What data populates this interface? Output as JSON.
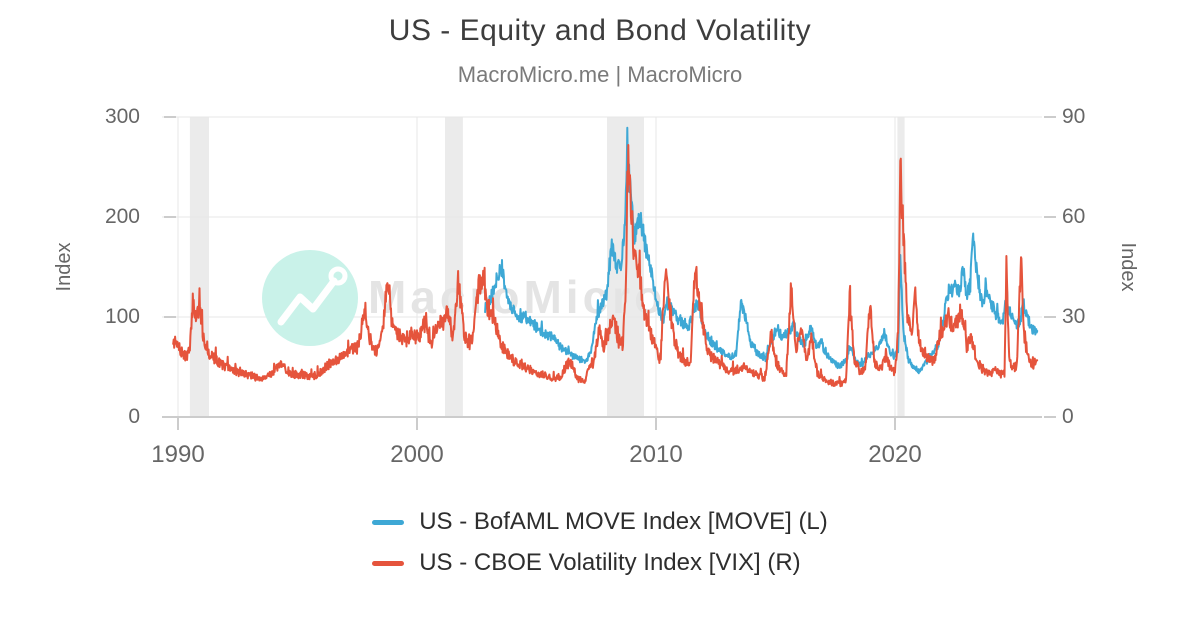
{
  "watermark": {
    "text": "MacroMicro"
  },
  "colors": {
    "move": "#3EA8D5",
    "vix": "#E5543C",
    "band": "#EBEBEB",
    "grid": "#E7E7E7",
    "axis_line": "#CCCCCC",
    "tick_text": "#666666",
    "watermark_circle": "#C9F2E9",
    "watermark_text": "#E4E4E4"
  },
  "chart_data": {
    "type": "line",
    "title": "US - Equity and Bond Volatility",
    "subtitle": "MacroMicro.me | MacroMicro",
    "xlabel": "",
    "ylabel_left": "Index",
    "ylabel_right": "Index",
    "xlim": [
      1989.33,
      2026.15
    ],
    "ylim_left": [
      0,
      300
    ],
    "ylim_right": [
      0,
      90
    ],
    "x_ticks": [
      1990,
      2000,
      2010,
      2020
    ],
    "left_ticks": [
      0,
      100,
      200,
      300
    ],
    "right_ticks": [
      0,
      30,
      60,
      90
    ],
    "grid": true,
    "legend_position": "bottom",
    "recession_bands": [
      [
        1990.5,
        1991.3
      ],
      [
        2001.17,
        2001.92
      ],
      [
        2007.95,
        2009.5
      ],
      [
        2020.1,
        2020.4
      ]
    ],
    "series": [
      {
        "name": "US - BofAML MOVE Index [MOVE] (L)",
        "axis": "left",
        "color": "#3EA8D5",
        "points": [
          [
            2002.85,
            108
          ],
          [
            2003.0,
            116
          ],
          [
            2003.25,
            128
          ],
          [
            2003.5,
            152
          ],
          [
            2003.63,
            138
          ],
          [
            2003.8,
            118
          ],
          [
            2004.0,
            108
          ],
          [
            2004.25,
            98
          ],
          [
            2004.55,
            100
          ],
          [
            2004.85,
            92
          ],
          [
            2005.1,
            88
          ],
          [
            2005.4,
            82
          ],
          [
            2005.7,
            80
          ],
          [
            2006.0,
            70
          ],
          [
            2006.3,
            65
          ],
          [
            2006.6,
            60
          ],
          [
            2006.9,
            57
          ],
          [
            2007.1,
            56
          ],
          [
            2007.3,
            68
          ],
          [
            2007.55,
            102
          ],
          [
            2007.75,
            112
          ],
          [
            2007.95,
            125
          ],
          [
            2008.15,
            172
          ],
          [
            2008.35,
            148
          ],
          [
            2008.55,
            152
          ],
          [
            2008.7,
            195
          ],
          [
            2008.8,
            262
          ],
          [
            2008.95,
            218
          ],
          [
            2009.1,
            182
          ],
          [
            2009.35,
            198
          ],
          [
            2009.55,
            172
          ],
          [
            2009.8,
            145
          ],
          [
            2010.05,
            112
          ],
          [
            2010.3,
            96
          ],
          [
            2010.45,
            115
          ],
          [
            2010.65,
            108
          ],
          [
            2010.9,
            98
          ],
          [
            2011.1,
            94
          ],
          [
            2011.35,
            88
          ],
          [
            2011.6,
            108
          ],
          [
            2011.78,
            114
          ],
          [
            2012.0,
            88
          ],
          [
            2012.3,
            75
          ],
          [
            2012.6,
            68
          ],
          [
            2012.9,
            62
          ],
          [
            2013.1,
            60
          ],
          [
            2013.35,
            64
          ],
          [
            2013.55,
            114
          ],
          [
            2013.75,
            98
          ],
          [
            2014.0,
            72
          ],
          [
            2014.3,
            62
          ],
          [
            2014.6,
            58
          ],
          [
            2014.85,
            78
          ],
          [
            2015.05,
            88
          ],
          [
            2015.3,
            80
          ],
          [
            2015.55,
            85
          ],
          [
            2015.75,
            92
          ],
          [
            2016.0,
            78
          ],
          [
            2016.25,
            72
          ],
          [
            2016.5,
            93
          ],
          [
            2016.7,
            68
          ],
          [
            2016.9,
            74
          ],
          [
            2017.1,
            62
          ],
          [
            2017.4,
            55
          ],
          [
            2017.7,
            50
          ],
          [
            2017.95,
            58
          ],
          [
            2018.15,
            68
          ],
          [
            2018.4,
            55
          ],
          [
            2018.65,
            52
          ],
          [
            2018.9,
            62
          ],
          [
            2019.1,
            64
          ],
          [
            2019.3,
            72
          ],
          [
            2019.55,
            84
          ],
          [
            2019.75,
            68
          ],
          [
            2019.95,
            60
          ],
          [
            2020.13,
            65
          ],
          [
            2020.22,
            158
          ],
          [
            2020.35,
            85
          ],
          [
            2020.55,
            58
          ],
          [
            2020.8,
            48
          ],
          [
            2021.05,
            45
          ],
          [
            2021.3,
            55
          ],
          [
            2021.55,
            62
          ],
          [
            2021.8,
            72
          ],
          [
            2022.0,
            92
          ],
          [
            2022.15,
            118
          ],
          [
            2022.35,
            126
          ],
          [
            2022.55,
            132
          ],
          [
            2022.7,
            125
          ],
          [
            2022.85,
            150
          ],
          [
            2023.0,
            122
          ],
          [
            2023.15,
            132
          ],
          [
            2023.27,
            182
          ],
          [
            2023.45,
            136
          ],
          [
            2023.65,
            112
          ],
          [
            2023.85,
            128
          ],
          [
            2024.05,
            112
          ],
          [
            2024.3,
            99
          ],
          [
            2024.5,
            95
          ],
          [
            2024.65,
            118
          ],
          [
            2024.85,
            102
          ],
          [
            2025.05,
            90
          ],
          [
            2025.25,
            96
          ],
          [
            2025.35,
            115
          ],
          [
            2025.55,
            98
          ],
          [
            2025.75,
            88
          ],
          [
            2025.95,
            86
          ]
        ]
      },
      {
        "name": "US - CBOE Volatility Index [VIX] (R)",
        "axis": "right",
        "color": "#E5543C",
        "points": [
          [
            1989.8,
            23
          ],
          [
            1990.0,
            21
          ],
          [
            1990.3,
            18
          ],
          [
            1990.5,
            20
          ],
          [
            1990.62,
            35
          ],
          [
            1990.75,
            30
          ],
          [
            1990.9,
            33
          ],
          [
            1991.05,
            24
          ],
          [
            1991.3,
            19
          ],
          [
            1991.6,
            17
          ],
          [
            1992.0,
            15
          ],
          [
            1992.5,
            13.5
          ],
          [
            1993.0,
            12.5
          ],
          [
            1993.4,
            11.5
          ],
          [
            1993.9,
            13
          ],
          [
            1994.3,
            15.5
          ],
          [
            1994.7,
            13
          ],
          [
            1995.2,
            12.5
          ],
          [
            1995.7,
            12
          ],
          [
            1996.2,
            15
          ],
          [
            1996.55,
            17
          ],
          [
            1996.9,
            18
          ],
          [
            1997.2,
            20
          ],
          [
            1997.55,
            21
          ],
          [
            1997.82,
            34
          ],
          [
            1998.0,
            23
          ],
          [
            1998.3,
            19.5
          ],
          [
            1998.6,
            28
          ],
          [
            1998.78,
            43
          ],
          [
            1998.95,
            28
          ],
          [
            1999.2,
            25
          ],
          [
            1999.5,
            23
          ],
          [
            1999.8,
            24
          ],
          [
            2000.1,
            24
          ],
          [
            2000.3,
            28
          ],
          [
            2000.6,
            22
          ],
          [
            2000.9,
            28
          ],
          [
            2001.1,
            28
          ],
          [
            2001.3,
            32
          ],
          [
            2001.5,
            24
          ],
          [
            2001.72,
            41
          ],
          [
            2001.85,
            33
          ],
          [
            2002.0,
            24
          ],
          [
            2002.2,
            21
          ],
          [
            2002.4,
            27
          ],
          [
            2002.57,
            39
          ],
          [
            2002.75,
            42
          ],
          [
            2002.95,
            32
          ],
          [
            2003.2,
            30
          ],
          [
            2003.5,
            22
          ],
          [
            2003.8,
            19
          ],
          [
            2004.1,
            16.5
          ],
          [
            2004.5,
            15
          ],
          [
            2004.9,
            13.5
          ],
          [
            2005.3,
            12.5
          ],
          [
            2005.7,
            11.5
          ],
          [
            2006.0,
            12
          ],
          [
            2006.4,
            17
          ],
          [
            2006.7,
            11.5
          ],
          [
            2007.0,
            10.5
          ],
          [
            2007.15,
            14
          ],
          [
            2007.4,
            16
          ],
          [
            2007.62,
            26
          ],
          [
            2007.8,
            21
          ],
          [
            2008.0,
            25
          ],
          [
            2008.2,
            31
          ],
          [
            2008.4,
            23
          ],
          [
            2008.6,
            21
          ],
          [
            2008.72,
            35
          ],
          [
            2008.84,
            79
          ],
          [
            2008.95,
            62
          ],
          [
            2009.1,
            47
          ],
          [
            2009.3,
            43
          ],
          [
            2009.55,
            30
          ],
          [
            2009.8,
            25
          ],
          [
            2010.05,
            19
          ],
          [
            2010.2,
            17
          ],
          [
            2010.38,
            43
          ],
          [
            2010.55,
            34
          ],
          [
            2010.75,
            24
          ],
          [
            2010.95,
            19
          ],
          [
            2011.15,
            17
          ],
          [
            2011.45,
            16
          ],
          [
            2011.63,
            45
          ],
          [
            2011.78,
            37
          ],
          [
            2011.95,
            28
          ],
          [
            2012.2,
            19
          ],
          [
            2012.5,
            17
          ],
          [
            2012.75,
            15.5
          ],
          [
            2013.0,
            13.5
          ],
          [
            2013.3,
            14
          ],
          [
            2013.6,
            15
          ],
          [
            2013.9,
            13.5
          ],
          [
            2014.2,
            13
          ],
          [
            2014.55,
            11.5
          ],
          [
            2014.8,
            25
          ],
          [
            2015.0,
            17
          ],
          [
            2015.2,
            14
          ],
          [
            2015.45,
            13
          ],
          [
            2015.66,
            40
          ],
          [
            2015.85,
            20
          ],
          [
            2016.1,
            26
          ],
          [
            2016.3,
            17
          ],
          [
            2016.5,
            24
          ],
          [
            2016.75,
            13
          ],
          [
            2017.0,
            11.5
          ],
          [
            2017.3,
            10.5
          ],
          [
            2017.6,
            9.8
          ],
          [
            2017.95,
            10.5
          ],
          [
            2018.1,
            35
          ],
          [
            2018.3,
            17
          ],
          [
            2018.55,
            13.5
          ],
          [
            2018.75,
            14
          ],
          [
            2018.96,
            34
          ],
          [
            2019.15,
            16
          ],
          [
            2019.4,
            14
          ],
          [
            2019.62,
            19
          ],
          [
            2019.8,
            14.5
          ],
          [
            2020.0,
            13.5
          ],
          [
            2020.13,
            25
          ],
          [
            2020.22,
            76
          ],
          [
            2020.35,
            55
          ],
          [
            2020.5,
            31
          ],
          [
            2020.7,
            26
          ],
          [
            2020.85,
            37
          ],
          [
            2021.0,
            23
          ],
          [
            2021.2,
            19
          ],
          [
            2021.45,
            17
          ],
          [
            2021.65,
            16.5
          ],
          [
            2021.9,
            26
          ],
          [
            2022.05,
            25
          ],
          [
            2022.2,
            31
          ],
          [
            2022.4,
            27
          ],
          [
            2022.55,
            28
          ],
          [
            2022.78,
            32
          ],
          [
            2023.0,
            21
          ],
          [
            2023.2,
            24
          ],
          [
            2023.45,
            16
          ],
          [
            2023.7,
            14
          ],
          [
            2023.95,
            13
          ],
          [
            2024.2,
            14
          ],
          [
            2024.45,
            12.5
          ],
          [
            2024.58,
            13
          ],
          [
            2024.66,
            46
          ],
          [
            2024.78,
            17
          ],
          [
            2024.95,
            14
          ],
          [
            2025.1,
            16
          ],
          [
            2025.27,
            48
          ],
          [
            2025.42,
            23
          ],
          [
            2025.6,
            16.5
          ],
          [
            2025.75,
            15.5
          ],
          [
            2025.95,
            17
          ]
        ]
      }
    ]
  }
}
